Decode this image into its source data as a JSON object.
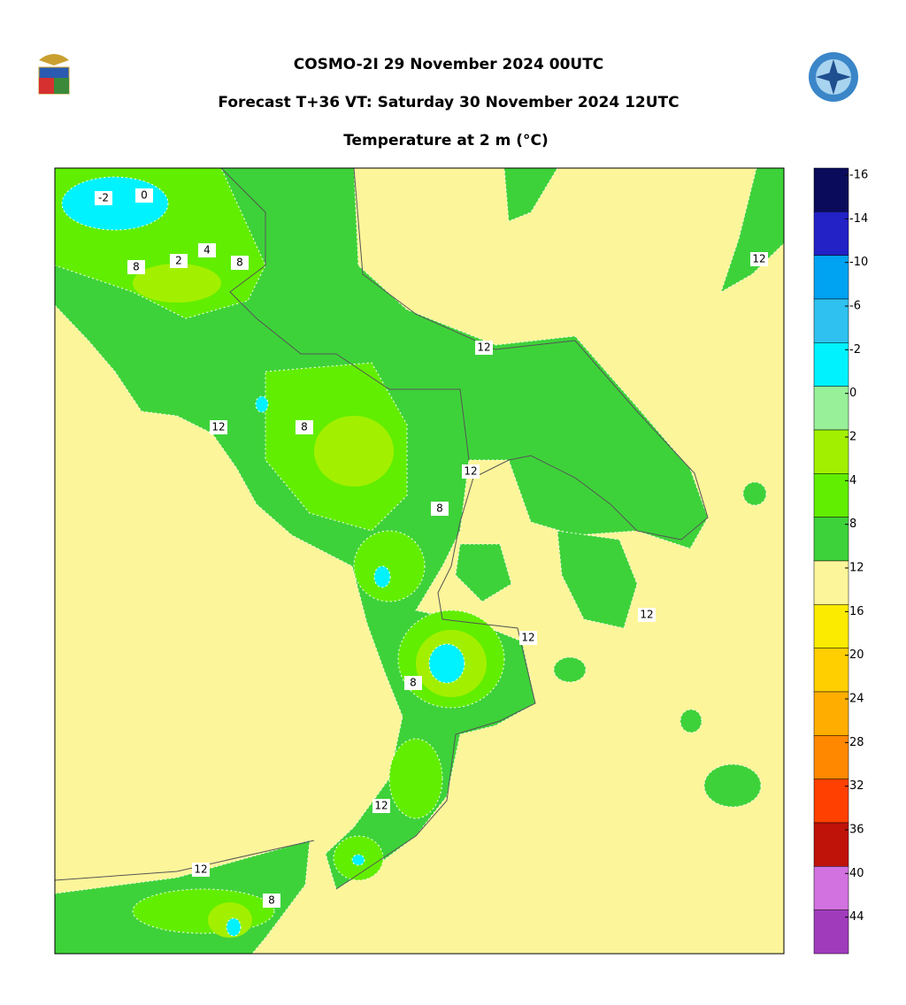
{
  "header": {
    "title": "COSMO-2I 29 November 2024 00UTC",
    "subtitle": "Forecast T+36 VT: Saturday 30 November 2024 12UTC",
    "field": "Temperature at 2 m (°C)"
  },
  "colorbar": {
    "levels": [
      -16,
      -14,
      -10,
      -6,
      -2,
      0,
      2,
      4,
      8,
      12,
      16,
      20,
      24,
      28,
      32,
      36,
      40,
      44
    ],
    "colors": [
      "#0b0b5c",
      "#2222c6",
      "#00a2f2",
      "#2fc2f0",
      "#00f2ff",
      "#98f098",
      "#a2f000",
      "#62ee00",
      "#3ed23a",
      "#fdf59a",
      "#fbeb00",
      "#ffcf00",
      "#ffae00",
      "#ff8800",
      "#ff4000",
      "#bf1208",
      "#d272e0",
      "#a03cbc"
    ]
  },
  "contour_labels": [
    -2,
    0,
    4,
    2,
    8,
    8,
    12,
    12,
    12,
    8,
    12,
    8,
    12,
    12,
    8,
    12,
    12,
    8
  ]
}
